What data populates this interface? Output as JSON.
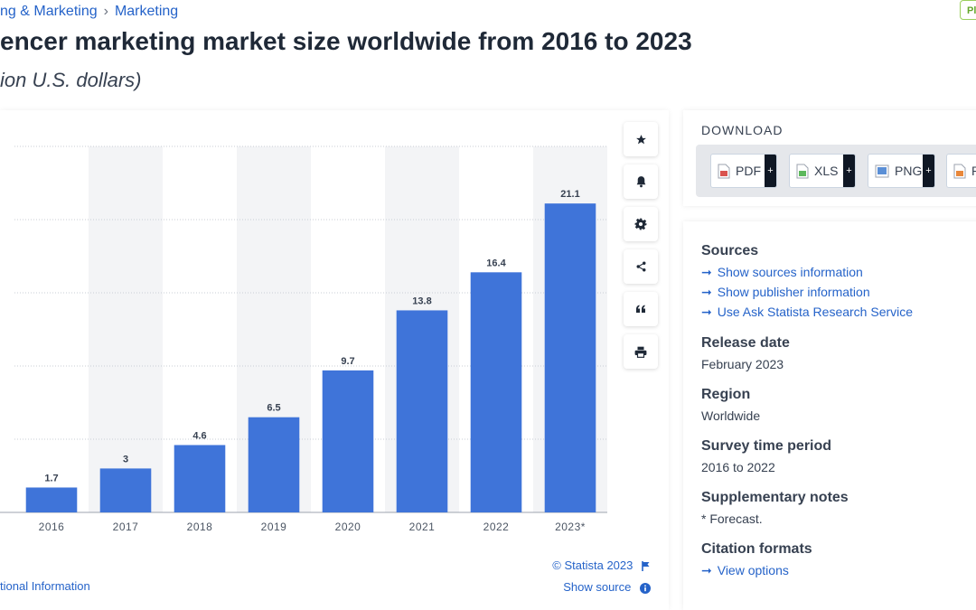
{
  "breadcrumb": {
    "items": [
      "ng & Marketing",
      "Marketing"
    ],
    "separator": "›"
  },
  "premium_badge": "Pl",
  "title": "encer marketing market size worldwide from 2016 to 2023",
  "subtitle": "ion U.S. dollars)",
  "chart_data": {
    "type": "bar",
    "categories": [
      "2016",
      "2017",
      "2018",
      "2019",
      "2020",
      "2021",
      "2022",
      "2023*"
    ],
    "values": [
      1.7,
      3,
      4.6,
      6.5,
      9.7,
      13.8,
      16.4,
      21.1
    ],
    "data_labels": [
      "1.7",
      "3",
      "4.6",
      "6.5",
      "9.7",
      "13.8",
      "16.4",
      "21.1"
    ],
    "ylim": [
      0,
      25
    ],
    "gridlines": [
      5,
      10,
      15,
      20,
      25
    ],
    "grid": true,
    "bar_color": "#3f74d9",
    "alt_column_bg": "#f3f4f6"
  },
  "chart_footer": {
    "copyright": "© Statista 2023",
    "show_source": "Show source",
    "additional_info": "tional Information"
  },
  "toolbar": {
    "icons": [
      "star-icon",
      "bell-icon",
      "gear-icon",
      "share-icon",
      "quote-icon",
      "print-icon"
    ]
  },
  "download": {
    "heading": "DOWNLOAD",
    "buttons": [
      {
        "label": "PDF",
        "icon": "pdf-file-icon",
        "color": "#d9534f"
      },
      {
        "label": "XLS",
        "icon": "xls-file-icon",
        "color": "#5cb85c"
      },
      {
        "label": "PNG",
        "icon": "png-file-icon",
        "color": "#5b8fd6"
      },
      {
        "label": "P",
        "icon": "ppt-file-icon",
        "color": "#e8873a"
      }
    ],
    "plus": "+"
  },
  "info": {
    "sources_title": "Sources",
    "links": [
      "Show sources information",
      "Show publisher information",
      "Use Ask Statista Research Service"
    ],
    "release_title": "Release date",
    "release_value": "February 2023",
    "region_title": "Region",
    "region_value": "Worldwide",
    "survey_title": "Survey time period",
    "survey_value": "2016 to 2022",
    "notes_title": "Supplementary notes",
    "notes_value": "* Forecast.",
    "citation_title": "Citation formats",
    "citation_link": "View options",
    "arrow": "➞"
  }
}
